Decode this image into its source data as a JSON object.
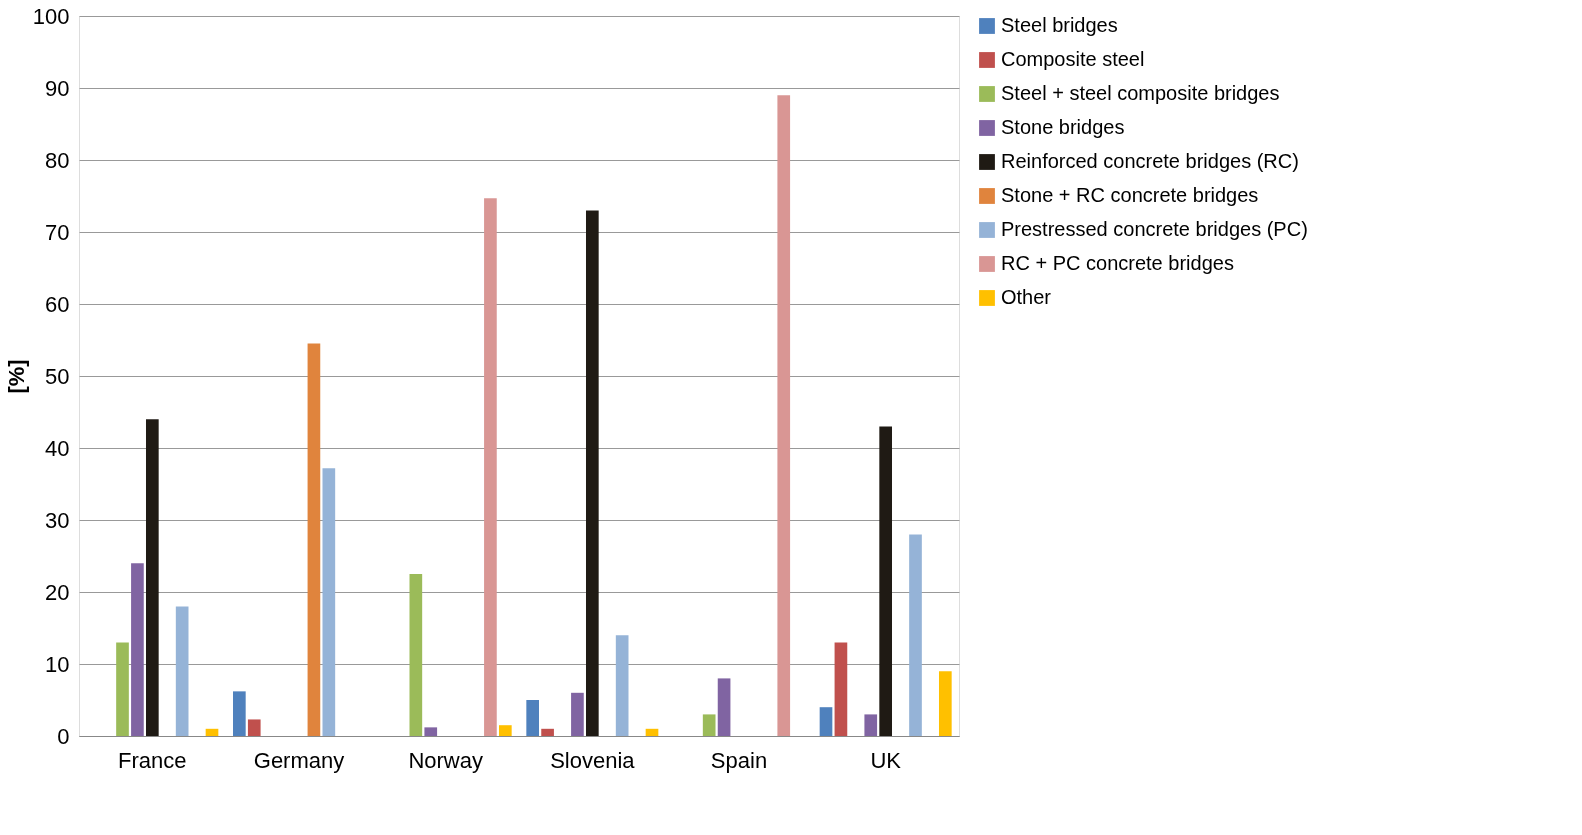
{
  "chart_data": {
    "type": "bar",
    "ylabel": "[%]",
    "categories": [
      "France",
      "Germany",
      "Norway",
      "Slovenia",
      "Spain",
      "UK"
    ],
    "series": [
      {
        "name": "Steel bridges",
        "color": "#4f81bd",
        "values": [
          null,
          6.2,
          null,
          5,
          null,
          4
        ]
      },
      {
        "name": "Composite steel",
        "color": "#c0504d",
        "values": [
          null,
          2.3,
          null,
          1,
          null,
          13
        ]
      },
      {
        "name": "Steel + steel composite bridges",
        "color": "#9bbb59",
        "values": [
          13,
          null,
          22.5,
          null,
          3,
          null
        ]
      },
      {
        "name": "Stone bridges",
        "color": "#8064a2",
        "values": [
          24,
          null,
          1.2,
          6,
          8,
          3
        ]
      },
      {
        "name": "Reinforced concrete bridges (RC)",
        "color": "#1f1a14",
        "values": [
          44,
          null,
          null,
          73,
          null,
          43
        ]
      },
      {
        "name": "Stone + RC concrete bridges",
        "color": "#e0843d",
        "values": [
          null,
          54.5,
          null,
          null,
          null,
          null
        ]
      },
      {
        "name": "Prestressed concrete bridges (PC)",
        "color": "#95b3d7",
        "values": [
          18,
          37.2,
          null,
          14,
          null,
          28
        ]
      },
      {
        "name": "RC + PC concrete bridges",
        "color": "#d99694",
        "values": [
          null,
          null,
          74.7,
          null,
          89,
          null
        ]
      },
      {
        "name": "Other",
        "color": "#ffc000",
        "values": [
          1,
          null,
          1.5,
          1,
          null,
          9
        ]
      }
    ],
    "ylim": [
      0,
      100
    ],
    "yticks": [
      0,
      10,
      20,
      30,
      40,
      50,
      60,
      70,
      80,
      90,
      100
    ],
    "grid": "y",
    "legend": "right"
  }
}
